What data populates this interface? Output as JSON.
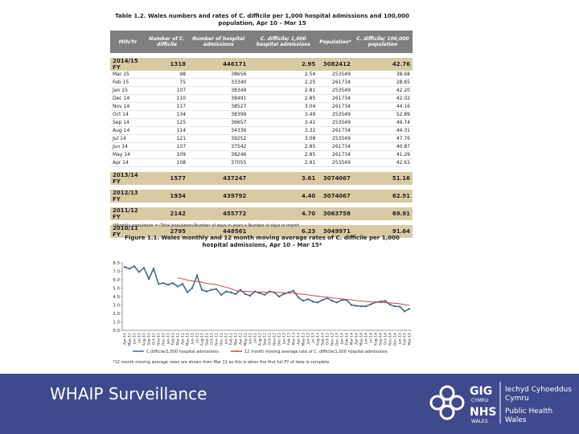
{
  "table": {
    "title": "Table 1.2. Wales numbers and rates of C. difficile per 1,000 hospital admissions and 100,000 population, Apr 10 – Mar 15",
    "headers": [
      "Mth/Yr",
      "Number of C. difficile",
      "Number of hospital admissions",
      "C. difficile/ 1,000 hospital admissions",
      "Population*",
      "C. difficile/ 100,000 population"
    ],
    "rows": [
      [
        "2014/15 FY",
        "1318",
        "446171",
        "2.95",
        "3082412",
        "42.76"
      ],
      [
        "Mar 15",
        "98",
        "38656",
        "2.54",
        "253549",
        "38.68"
      ],
      [
        "Feb 15",
        "75",
        "33340",
        "2.25",
        "261734",
        "28.65"
      ],
      [
        "Jan 15",
        "107",
        "38349",
        "2.81",
        "253549",
        "42.20"
      ],
      [
        "Dec 14",
        "110",
        "38491",
        "2.85",
        "261734",
        "42.02"
      ],
      [
        "Nov 14",
        "117",
        "38527",
        "3.04",
        "261734",
        "44.16"
      ],
      [
        "Oct 14",
        "134",
        "38399",
        "3.49",
        "253549",
        "52.89"
      ],
      [
        "Sep 14",
        "125",
        "36657",
        "3.41",
        "253549",
        "49.74"
      ],
      [
        "Aug 14",
        "114",
        "34336",
        "3.32",
        "261734",
        "44.31"
      ],
      [
        "Jul 14",
        "121",
        "39252",
        "3.08",
        "253549",
        "47.76"
      ],
      [
        "Jun 14",
        "107",
        "37542",
        "2.85",
        "261734",
        "40.87"
      ],
      [
        "May 14",
        "109",
        "38246",
        "2.85",
        "261734",
        "41.29"
      ],
      [
        "Apr 14",
        "108",
        "37055",
        "2.91",
        "253549",
        "42.61"
      ],
      [
        "2013/14 FY",
        "1577",
        "437247",
        "3.61",
        "3074067",
        "51.16"
      ],
      [
        "2012/13 FY",
        "1934",
        "439792",
        "4.40",
        "3074067",
        "62.91"
      ],
      [
        "2011/12 FY",
        "2142",
        "455772",
        "4.70",
        "3063758",
        "69.91"
      ],
      [
        "2010/11 FY",
        "2795",
        "448561",
        "6.23",
        "3049971",
        "91.64"
      ]
    ],
    "note": "*Monthly population = (Total population/Number of days in year) x Number of days in month"
  },
  "chart_data": {
    "type": "line",
    "title": "Figure 1.1. Wales monthly and 12 month moving average rates of C. difficile per 1,000 hospital admissions, Apr 10 – Mar 15*",
    "categories": [
      "Apr-10",
      "May-10",
      "Jun-10",
      "Jul-10",
      "Aug-10",
      "Sep-10",
      "Oct-10",
      "Nov-10",
      "Dec-10",
      "Jan-11",
      "Feb-11",
      "Mar-11",
      "Apr-11",
      "May-11",
      "Jun-11",
      "Jul-11",
      "Aug-11",
      "Sep-11",
      "Oct-11",
      "Nov-11",
      "Dec-11",
      "Jan-12",
      "Feb-12",
      "Mar-12",
      "Apr-12",
      "May-12",
      "Jun-12",
      "Jul-12",
      "Aug-12",
      "Sep-12",
      "Oct-12",
      "Nov-12",
      "Dec-12",
      "Jan-13",
      "Feb-13",
      "Mar-13",
      "Apr-13",
      "May-13",
      "Jun-13",
      "Jul-13",
      "Aug-13",
      "Sep-13",
      "Oct-13",
      "Nov-13",
      "Dec-13",
      "Jan-14",
      "Feb-14",
      "Mar-14",
      "Apr-14",
      "May-14",
      "Jun-14",
      "Jul-14",
      "Aug-14",
      "Sep-14",
      "Oct-14",
      "Nov-14",
      "Dec-14",
      "Jan-15",
      "Feb-15",
      "Mar-15"
    ],
    "series": [
      {
        "name": "C.difficile/1,000 hospital admissions",
        "color": "#4a6b8a",
        "values": [
          7.5,
          7.3,
          7.6,
          6.9,
          7.4,
          6.1,
          7.3,
          5.5,
          5.6,
          5.4,
          5.6,
          5.2,
          5.5,
          4.5,
          5.0,
          6.5,
          4.8,
          4.6,
          4.8,
          4.9,
          4.2,
          4.6,
          4.5,
          4.3,
          4.8,
          4.3,
          4.1,
          4.6,
          4.4,
          4.2,
          4.6,
          4.5,
          4.0,
          4.3,
          4.5,
          4.7,
          3.9,
          3.5,
          3.7,
          3.4,
          3.3,
          3.6,
          3.8,
          3.5,
          3.3,
          3.6,
          3.6,
          3.0,
          2.91,
          2.85,
          2.85,
          3.08,
          3.32,
          3.41,
          3.49,
          3.04,
          2.85,
          2.81,
          2.25,
          2.54
        ]
      },
      {
        "name": "12 month moving average rate of C. difficile/1,000 hospital admissions",
        "color": "#c0504d",
        "values": [
          null,
          null,
          null,
          null,
          null,
          null,
          null,
          null,
          null,
          null,
          null,
          6.23,
          6.1,
          5.95,
          5.85,
          5.8,
          5.7,
          5.55,
          5.5,
          5.4,
          5.25,
          5.1,
          4.95,
          4.7,
          4.65,
          4.62,
          4.58,
          4.55,
          4.55,
          4.53,
          4.52,
          4.5,
          4.48,
          4.45,
          4.42,
          4.4,
          4.33,
          4.27,
          4.2,
          4.12,
          4.05,
          3.98,
          3.93,
          3.85,
          3.78,
          3.72,
          3.67,
          3.61,
          3.53,
          3.47,
          3.42,
          3.37,
          3.33,
          3.3,
          3.28,
          3.25,
          3.2,
          3.15,
          3.05,
          2.95
        ]
      }
    ],
    "ylim": [
      0,
      8
    ],
    "yticks": [
      {
        "value": 0,
        "label": "0.0"
      },
      {
        "value": 1,
        "label": "1.0"
      },
      {
        "value": 2,
        "label": "2.0"
      },
      {
        "value": 3,
        "label": "3.0"
      },
      {
        "value": 4,
        "label": "4.0"
      },
      {
        "value": 5,
        "label": "5.0"
      },
      {
        "value": 6,
        "label": "6.0"
      },
      {
        "value": 7,
        "label": "7.0"
      },
      {
        "value": 8,
        "label": "8.0"
      }
    ],
    "grid": false,
    "note": "*12 month moving average rates are shown from Mar 11 as this is when the first full FY of data is complete"
  },
  "footer": {
    "title": "WHAIP Surveillance",
    "logo": [
      "GIG",
      "CYMRU",
      "NHS",
      "WALES"
    ],
    "org": [
      "Iechyd Cyhoeddus",
      "Cymru",
      "Public Health",
      "Wales"
    ]
  }
}
